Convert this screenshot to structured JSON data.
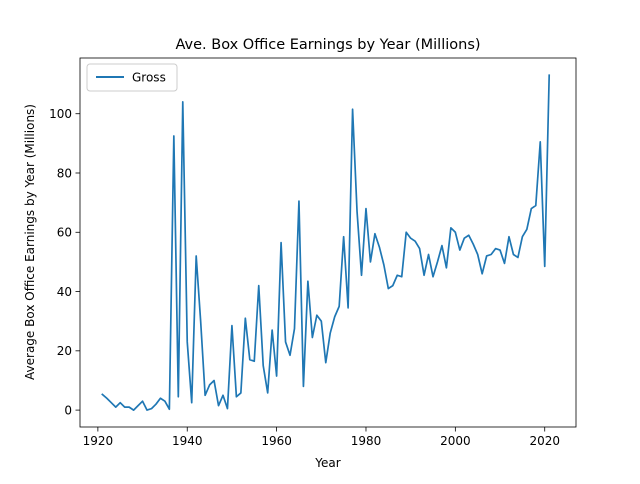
{
  "chart_data": {
    "type": "line",
    "title": "Ave. Box Office Earnings by Year (Millions)",
    "xlabel": "Year",
    "ylabel": "Average Box Office Earnings by Year (Millions)",
    "xlim": [
      1916,
      2027
    ],
    "ylim": [
      -5.7,
      118.8
    ],
    "xticks": [
      1920,
      1940,
      1960,
      1980,
      2000,
      2020
    ],
    "yticks": [
      0,
      20,
      40,
      60,
      80,
      100
    ],
    "legend": "top-left",
    "grid": false,
    "series": [
      {
        "name": "Gross",
        "color": "#1f77b4",
        "x": [
          1921,
          1922,
          1923,
          1924,
          1925,
          1926,
          1927,
          1928,
          1929,
          1930,
          1931,
          1932,
          1933,
          1934,
          1935,
          1936,
          1937,
          1938,
          1939,
          1940,
          1941,
          1942,
          1943,
          1944,
          1945,
          1946,
          1947,
          1948,
          1949,
          1950,
          1951,
          1952,
          1953,
          1954,
          1955,
          1956,
          1957,
          1958,
          1959,
          1960,
          1961,
          1962,
          1963,
          1964,
          1965,
          1966,
          1967,
          1968,
          1969,
          1970,
          1971,
          1972,
          1973,
          1974,
          1975,
          1976,
          1977,
          1978,
          1979,
          1980,
          1981,
          1982,
          1983,
          1984,
          1985,
          1986,
          1987,
          1988,
          1989,
          1990,
          1991,
          1992,
          1993,
          1994,
          1995,
          1996,
          1997,
          1998,
          1999,
          2000,
          2001,
          2002,
          2003,
          2004,
          2005,
          2006,
          2007,
          2008,
          2009,
          2010,
          2011,
          2012,
          2013,
          2014,
          2015,
          2016,
          2017,
          2018,
          2019,
          2020,
          2021
        ],
        "values": [
          5.3,
          4,
          2.5,
          1,
          2.5,
          1,
          1,
          0,
          1.5,
          3,
          0,
          0.5,
          2,
          4,
          3,
          0.3,
          92.5,
          4.5,
          104,
          23,
          2.5,
          52,
          30,
          5,
          8.5,
          10,
          1.5,
          5,
          0.5,
          28.5,
          4.5,
          5.8,
          31,
          17,
          16.5,
          42,
          15,
          5.8,
          27,
          11.5,
          56.5,
          23,
          18.5,
          27.5,
          70.5,
          8,
          43.5,
          24.5,
          32,
          30,
          16,
          26,
          31.5,
          35,
          58.5,
          34.5,
          101.5,
          67,
          45.5,
          68,
          50,
          59.5,
          55,
          49,
          41,
          42,
          45.5,
          45,
          60,
          58,
          57,
          54.5,
          45.5,
          52.5,
          45,
          50,
          55.5,
          48,
          61.5,
          60,
          54,
          58,
          59,
          56,
          52.5,
          46,
          52,
          52.5,
          54.5,
          54,
          49.5,
          58.5,
          52.5,
          51.5,
          58.5,
          61,
          68,
          69,
          90.5,
          48.5,
          113
        ]
      }
    ]
  }
}
